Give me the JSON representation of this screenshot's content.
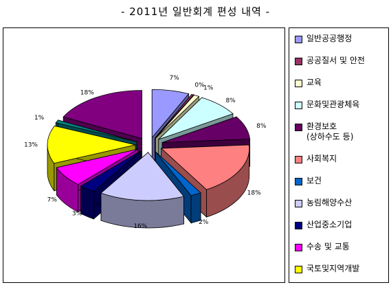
{
  "chart_data": {
    "type": "pie",
    "title": "- 2011년 일반회계 편성 내역 -",
    "legend_position": "right",
    "slices": [
      {
        "name": "일반공공행정",
        "value": 7,
        "label": "7%",
        "color": "#9999FF"
      },
      {
        "name": "공공질서 및 안전",
        "value": 0.4,
        "label": "0%",
        "color": "#993366"
      },
      {
        "name": "교육",
        "value": 1,
        "label": "1%",
        "color": "#FFFFCC"
      },
      {
        "name": "문화및관광체육",
        "value": 8,
        "label": "8%",
        "color": "#CCFFFF"
      },
      {
        "name": "환경보호\n(상하수도 등)",
        "value": 8,
        "label": "8%",
        "color": "#660066"
      },
      {
        "name": "사회복지",
        "value": 18,
        "label": "18%",
        "color": "#FF8080"
      },
      {
        "name": "보건",
        "value": 2,
        "label": "2%",
        "color": "#0066CC"
      },
      {
        "name": "농림해양수산",
        "value": 16,
        "label": "16%",
        "color": "#CCCCFF"
      },
      {
        "name": "산업중소기업",
        "value": 3,
        "label": "3%",
        "color": "#000080"
      },
      {
        "name": "수송 및 교통",
        "value": 7,
        "label": "7%",
        "color": "#FF00FF"
      },
      {
        "name": "국토및지역개발",
        "value": 13,
        "label": "13%",
        "color": "#FFFF00"
      },
      {
        "name": "",
        "value": 1,
        "label": "1%",
        "color": "#008080"
      },
      {
        "name": "",
        "value": 18,
        "label": "18%",
        "color": "#800080"
      }
    ]
  }
}
